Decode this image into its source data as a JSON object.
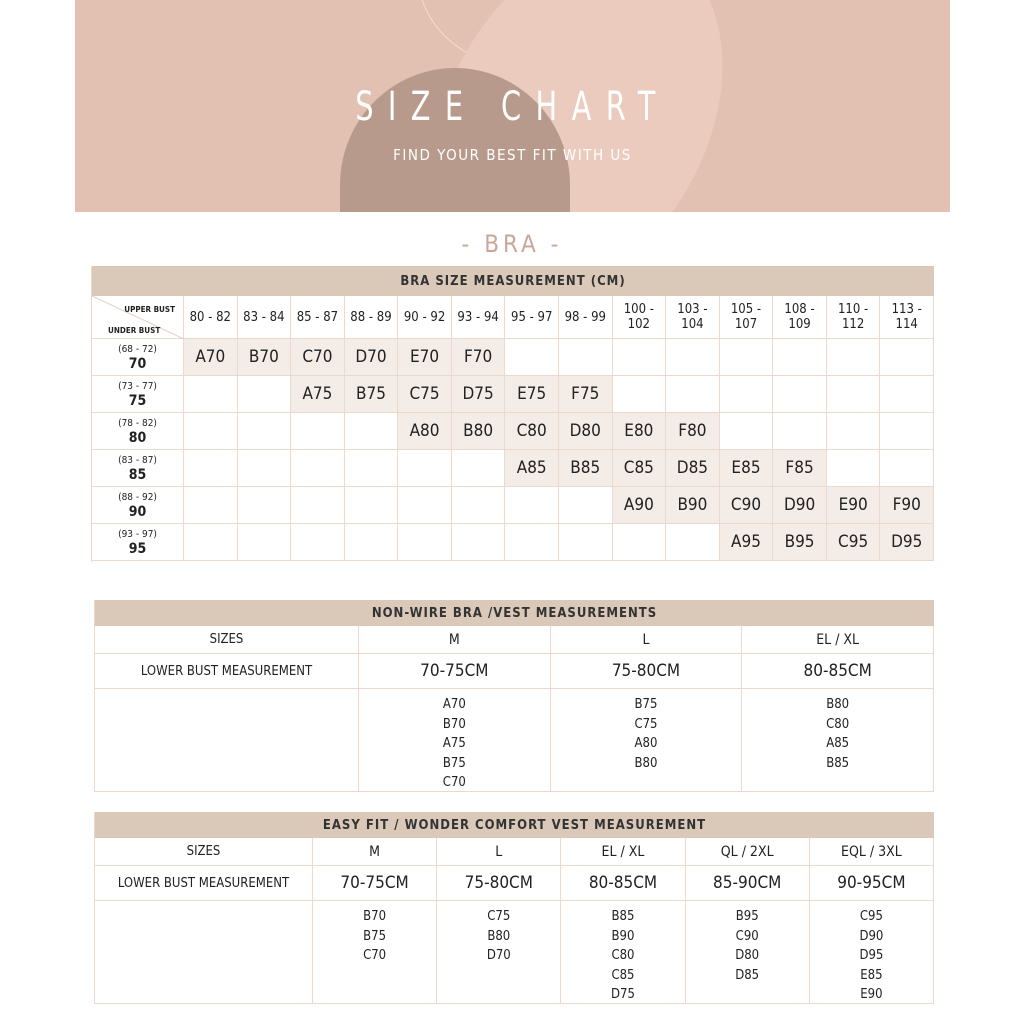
{
  "banner": {
    "title": "SIZE CHART",
    "subtitle": "FIND YOUR BEST FIT WITH US"
  },
  "section_title": "- BRA -",
  "bra": {
    "title": "BRA SIZE MEASUREMENT (CM)",
    "corner_top": "UPPER BUST",
    "corner_bottom": "UNDER BUST",
    "columns": [
      "80 - 82",
      "83 - 84",
      "85 - 87",
      "88 - 89",
      "90 - 92",
      "93 - 94",
      "95 - 97",
      "98 - 99",
      "100 - 102",
      "103 - 104",
      "105 - 107",
      "108 - 109",
      "110 - 112",
      "113 - 114"
    ],
    "rows": [
      {
        "range": "(68 - 72)",
        "size": "70",
        "cells": [
          "A70",
          "B70",
          "C70",
          "D70",
          "E70",
          "F70",
          "",
          "",
          "",
          "",
          "",
          "",
          "",
          ""
        ]
      },
      {
        "range": "(73 - 77)",
        "size": "75",
        "cells": [
          "",
          "",
          "A75",
          "B75",
          "C75",
          "D75",
          "E75",
          "F75",
          "",
          "",
          "",
          "",
          "",
          ""
        ]
      },
      {
        "range": "(78 - 82)",
        "size": "80",
        "cells": [
          "",
          "",
          "",
          "",
          "A80",
          "B80",
          "C80",
          "D80",
          "E80",
          "F80",
          "",
          "",
          "",
          ""
        ]
      },
      {
        "range": "(83 - 87)",
        "size": "85",
        "cells": [
          "",
          "",
          "",
          "",
          "",
          "",
          "A85",
          "B85",
          "C85",
          "D85",
          "E85",
          "F85",
          "",
          ""
        ]
      },
      {
        "range": "(88 - 92)",
        "size": "90",
        "cells": [
          "",
          "",
          "",
          "",
          "",
          "",
          "",
          "",
          "A90",
          "B90",
          "C90",
          "D90",
          "E90",
          "F90"
        ]
      },
      {
        "range": "(93 - 97)",
        "size": "95",
        "cells": [
          "",
          "",
          "",
          "",
          "",
          "",
          "",
          "",
          "",
          "",
          "A95",
          "B95",
          "C95",
          "D95"
        ]
      }
    ]
  },
  "nonwire": {
    "title": "NON-WIRE BRA /VEST MEASUREMENTS",
    "sizes_label": "SIZES",
    "measure_label": "LOWER BUST MEASUREMENT",
    "columns": [
      {
        "size": "M",
        "measure": "70-75CM",
        "fits": [
          "A70",
          "B70",
          "A75",
          "B75",
          "C70"
        ]
      },
      {
        "size": "L",
        "measure": "75-80CM",
        "fits": [
          "B75",
          "C75",
          "A80",
          "B80"
        ]
      },
      {
        "size": "EL / XL",
        "measure": "80-85CM",
        "fits": [
          "B80",
          "C80",
          "A85",
          "B85"
        ]
      }
    ]
  },
  "easyfit": {
    "title": "EASY FIT  / WONDER COMFORT VEST MEASUREMENT",
    "sizes_label": "SIZES",
    "measure_label": "LOWER BUST MEASUREMENT",
    "columns": [
      {
        "size": "M",
        "measure": "70-75CM",
        "fits": [
          "B70",
          "B75",
          "C70"
        ]
      },
      {
        "size": "L",
        "measure": "75-80CM",
        "fits": [
          "C75",
          "B80",
          "D70"
        ]
      },
      {
        "size": "EL / XL",
        "measure": "80-85CM",
        "fits": [
          "B85",
          "B90",
          "C80",
          "C85",
          "D75"
        ]
      },
      {
        "size": "QL / 2XL",
        "measure": "85-90CM",
        "fits": [
          "B95",
          "C90",
          "D80",
          "D85"
        ]
      },
      {
        "size": "EQL / 3XL",
        "measure": "90-95CM",
        "fits": [
          "C95",
          "D90",
          "D95",
          "E85",
          "E90"
        ]
      }
    ]
  }
}
